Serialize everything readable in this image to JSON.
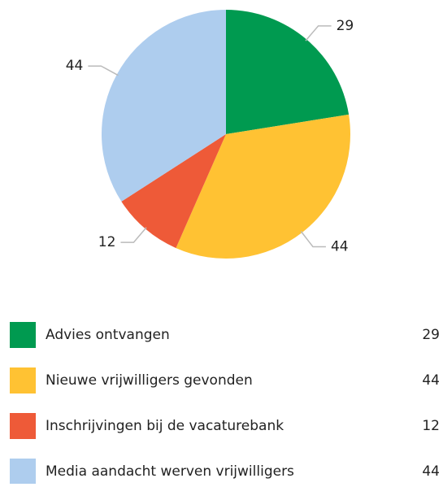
{
  "chart_data": {
    "type": "pie",
    "categories": [
      "Advies ontvangen",
      "Nieuwe vrijwilligers gevonden",
      "Inschrijvingen bij de vacaturebank",
      "Media aandacht werven vrijwilligers"
    ],
    "values": [
      29,
      44,
      12,
      44
    ],
    "colors": [
      "#009a50",
      "#ffc233",
      "#ee5a38",
      "#aecdee"
    ]
  }
}
